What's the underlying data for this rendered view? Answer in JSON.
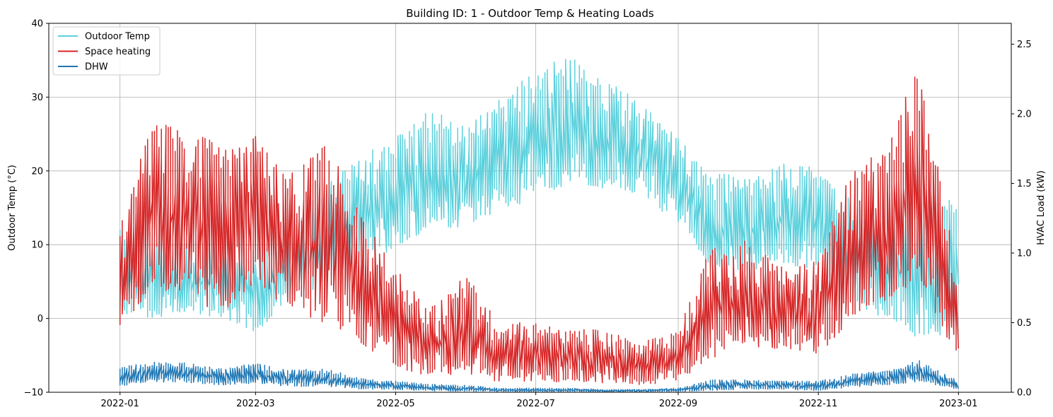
{
  "chart_data": {
    "type": "line",
    "title": "Building ID: 1 - Outdoor Temp & Heating Loads",
    "ylabel_left": "Outdoor Temp (°C)",
    "ylabel_right": "HVAC Load (kW)",
    "xlim": [
      "2021-12-01",
      "2023-01-24"
    ],
    "ylim_left": [
      -10,
      40
    ],
    "ylim_right": [
      0,
      2.65
    ],
    "x_ticks": [
      "2022-01",
      "2022-03",
      "2022-05",
      "2022-07",
      "2022-09",
      "2022-11",
      "2023-01"
    ],
    "y_ticks_left": [
      -10,
      0,
      10,
      20,
      30,
      40
    ],
    "y_ticks_right": [
      0.0,
      0.5,
      1.0,
      1.5,
      2.0,
      2.5
    ],
    "grid": true,
    "legend_position": "top-left",
    "colors": {
      "outdoor": "#5bd0dc",
      "space": "#d62728",
      "dhw": "#1f77b4"
    },
    "series": [
      {
        "name": "Outdoor Temp",
        "axis": "left",
        "x": [
          "2022-01-01",
          "2022-01-15",
          "2022-02-01",
          "2022-02-15",
          "2022-03-01",
          "2022-03-15",
          "2022-04-01",
          "2022-04-15",
          "2022-05-01",
          "2022-05-15",
          "2022-06-01",
          "2022-06-15",
          "2022-07-01",
          "2022-07-15",
          "2022-08-01",
          "2022-08-15",
          "2022-09-01",
          "2022-09-15",
          "2022-10-01",
          "2022-10-15",
          "2022-11-01",
          "2022-11-15",
          "2022-12-01",
          "2022-12-15",
          "2023-01-01"
        ],
        "low": [
          -2,
          -2,
          -1,
          -2,
          -4,
          0,
          2,
          4,
          7,
          9,
          10,
          12,
          13,
          15,
          15,
          14,
          11,
          4,
          4,
          5,
          4,
          0,
          -3,
          -6,
          -5
        ],
        "high": [
          12,
          12,
          10,
          11,
          10,
          13,
          18,
          22,
          25,
          29,
          26,
          30,
          34,
          36,
          32,
          30,
          25,
          20,
          19,
          21,
          21,
          16,
          15,
          16,
          16
        ]
      },
      {
        "name": "Space heating",
        "axis": "right",
        "x": [
          "2022-01-01",
          "2022-01-15",
          "2022-02-01",
          "2022-02-15",
          "2022-03-01",
          "2022-03-15",
          "2022-04-01",
          "2022-04-15",
          "2022-05-01",
          "2022-05-15",
          "2022-06-01",
          "2022-06-15",
          "2022-07-01",
          "2022-07-15",
          "2022-08-01",
          "2022-08-15",
          "2022-09-01",
          "2022-09-15",
          "2022-10-01",
          "2022-10-15",
          "2022-11-01",
          "2022-11-15",
          "2022-12-01",
          "2022-12-15",
          "2023-01-01"
        ],
        "low": [
          0.3,
          0.55,
          0.45,
          0.35,
          0.55,
          0.45,
          0.25,
          0.2,
          0.05,
          0.03,
          0.0,
          0.0,
          0.0,
          0.0,
          0.0,
          0.0,
          0.0,
          0.1,
          0.2,
          0.2,
          0.15,
          0.3,
          0.45,
          0.55,
          0.1
        ],
        "high": [
          1.2,
          1.95,
          1.9,
          1.75,
          1.85,
          1.55,
          1.8,
          1.3,
          0.9,
          0.6,
          0.85,
          0.5,
          0.5,
          0.45,
          0.45,
          0.35,
          0.45,
          1.05,
          1.1,
          0.9,
          0.95,
          1.6,
          1.75,
          2.4,
          0.8
        ]
      },
      {
        "name": "DHW",
        "axis": "right",
        "x": [
          "2022-01-01",
          "2022-01-15",
          "2022-02-01",
          "2022-02-15",
          "2022-03-01",
          "2022-03-15",
          "2022-04-01",
          "2022-04-15",
          "2022-05-01",
          "2022-05-15",
          "2022-06-01",
          "2022-06-15",
          "2022-07-01",
          "2022-07-15",
          "2022-08-01",
          "2022-08-15",
          "2022-09-01",
          "2022-09-15",
          "2022-10-01",
          "2022-10-15",
          "2022-11-01",
          "2022-11-15",
          "2022-12-01",
          "2022-12-15",
          "2023-01-01"
        ],
        "low": [
          0.02,
          0.05,
          0.04,
          0.03,
          0.04,
          0.02,
          0.02,
          0.01,
          0.01,
          0.0,
          0.0,
          0.0,
          0.0,
          0.0,
          0.0,
          0.0,
          0.0,
          0.0,
          0.01,
          0.01,
          0.0,
          0.02,
          0.03,
          0.05,
          0.01
        ],
        "high": [
          0.18,
          0.22,
          0.21,
          0.17,
          0.21,
          0.16,
          0.17,
          0.1,
          0.08,
          0.06,
          0.05,
          0.03,
          0.03,
          0.03,
          0.02,
          0.02,
          0.03,
          0.09,
          0.09,
          0.08,
          0.08,
          0.13,
          0.16,
          0.23,
          0.08
        ]
      }
    ]
  }
}
